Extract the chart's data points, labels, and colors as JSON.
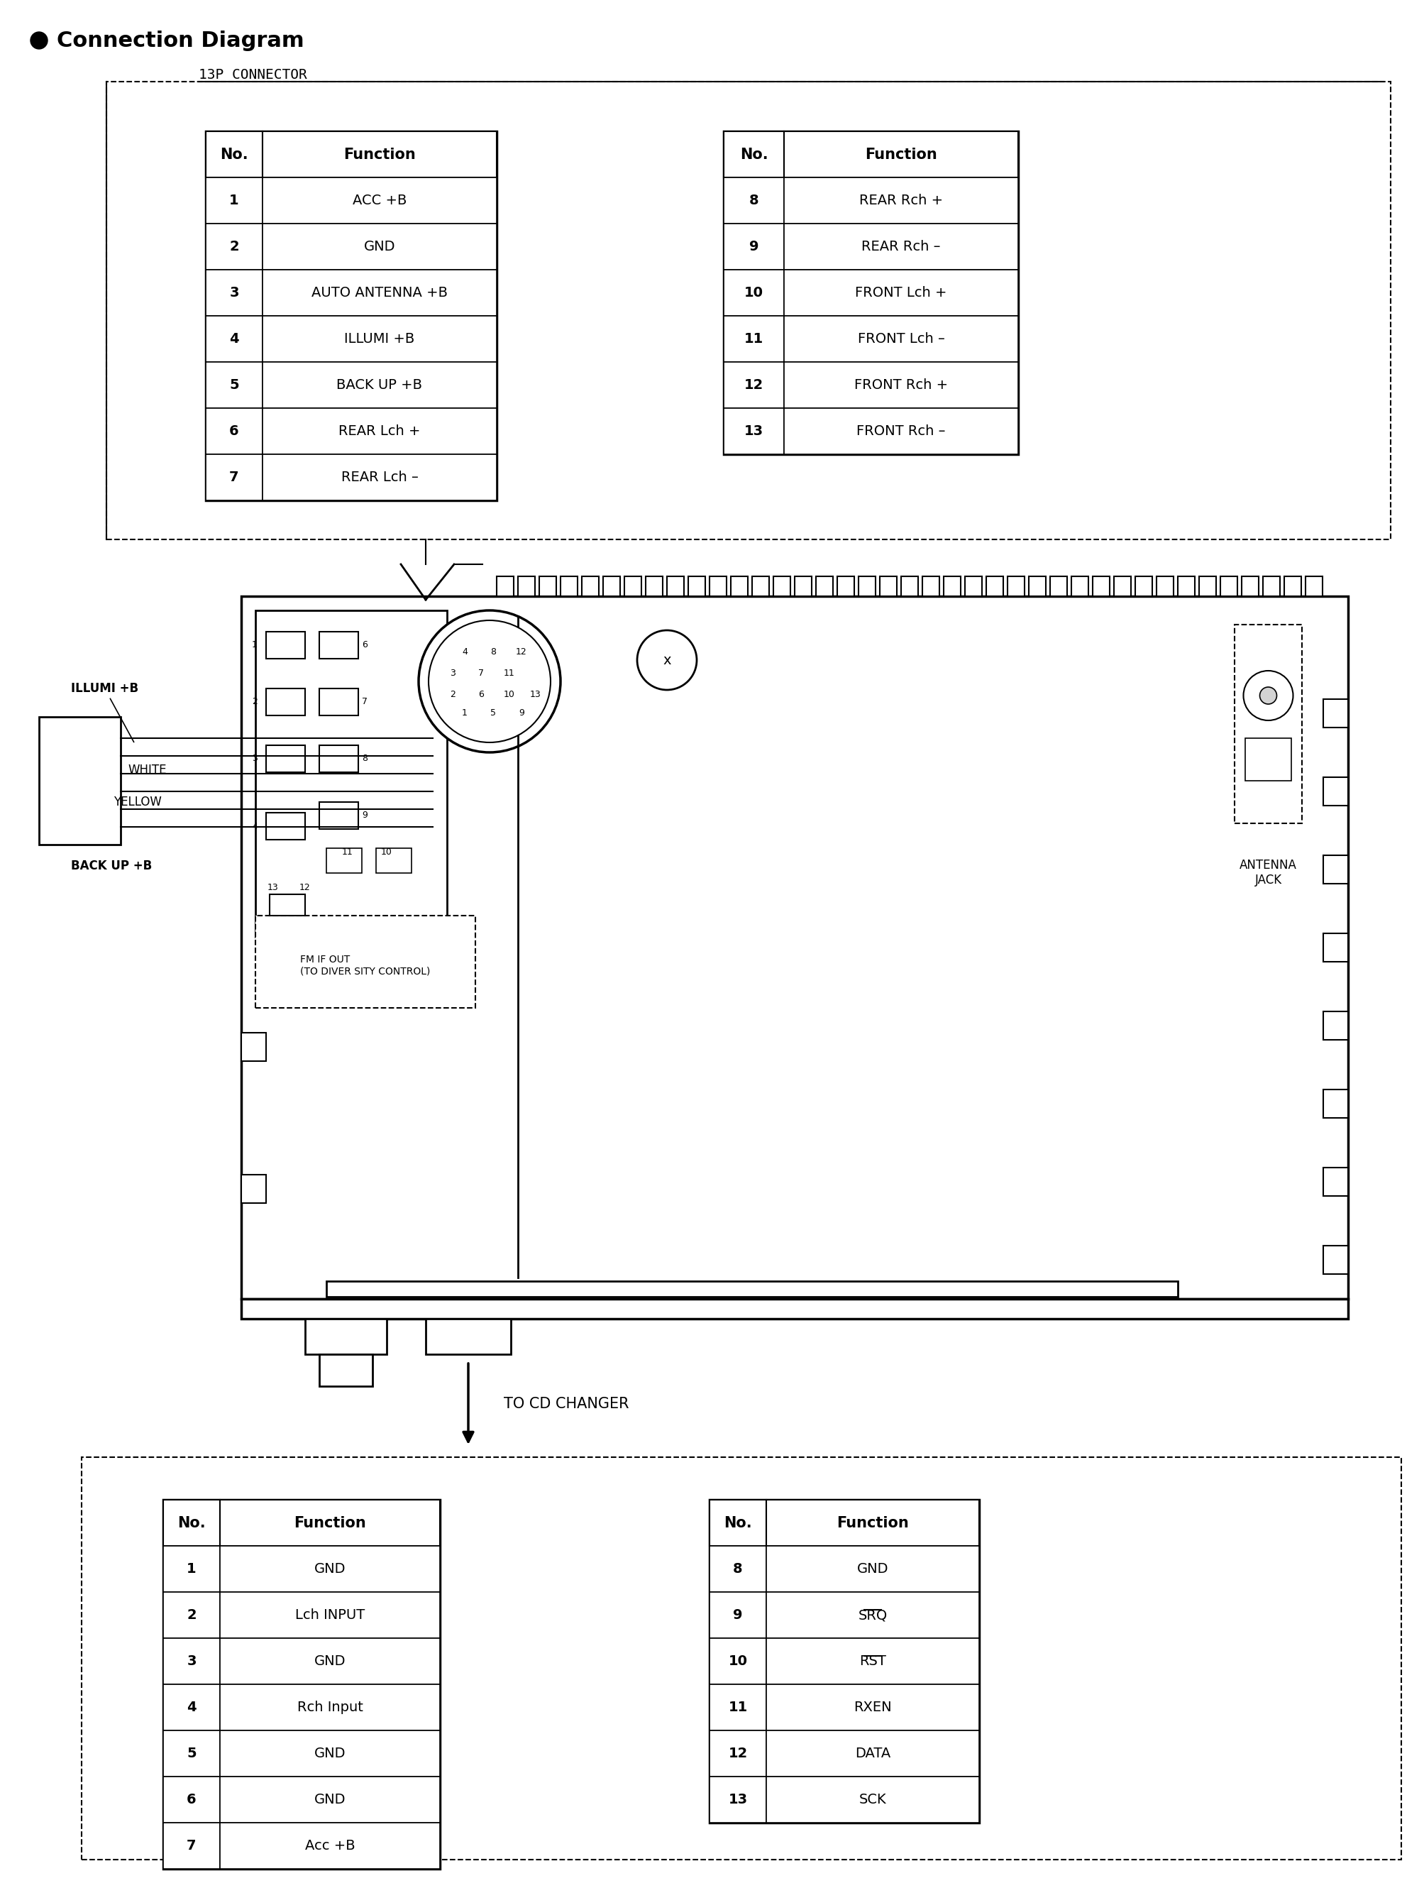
{
  "title": "Connection Diagram",
  "connector1_label": "13P CONNECTOR",
  "table1_left": {
    "headers": [
      "No.",
      "Function"
    ],
    "rows": [
      [
        "1",
        "ACC +B"
      ],
      [
        "2",
        "GND"
      ],
      [
        "3",
        "AUTO ANTENNA +B"
      ],
      [
        "4",
        "ILLUMI +B"
      ],
      [
        "5",
        "BACK UP +B"
      ],
      [
        "6",
        "REAR Lch +"
      ],
      [
        "7",
        "REAR Lch –"
      ]
    ]
  },
  "table1_right": {
    "headers": [
      "No.",
      "Function"
    ],
    "rows": [
      [
        "8",
        "REAR Rch +"
      ],
      [
        "9",
        "REAR Rch –"
      ],
      [
        "10",
        "FRONT Lch +"
      ],
      [
        "11",
        "FRONT Lch –"
      ],
      [
        "12",
        "FRONT Rch +"
      ],
      [
        "13",
        "FRONT Rch –"
      ]
    ]
  },
  "cd_changer_label": "TO CD CHANGER",
  "table2_left": {
    "headers": [
      "No.",
      "Function"
    ],
    "rows": [
      [
        "1",
        "GND"
      ],
      [
        "2",
        "Lch INPUT"
      ],
      [
        "3",
        "GND"
      ],
      [
        "4",
        "Rch Input"
      ],
      [
        "5",
        "GND"
      ],
      [
        "6",
        "GND"
      ],
      [
        "7",
        "Acc +B"
      ]
    ]
  },
  "table2_right": {
    "headers": [
      "No.",
      "Function"
    ],
    "rows": [
      [
        "8",
        "GND"
      ],
      [
        "9",
        "SRQ"
      ],
      [
        "10",
        "RST"
      ],
      [
        "11",
        "RXEN"
      ],
      [
        "12",
        "DATA"
      ],
      [
        "13",
        "SCK"
      ]
    ]
  },
  "overline_entries": [
    "SRQ",
    "RST"
  ],
  "labels_diagram": {
    "illumi": "ILLUMI +B",
    "white": "WHITE",
    "yellow": "YELLOW",
    "backup": "BACK UP +B",
    "antenna_jack": "ANTENNA\nJACK",
    "fm_if_out": "FM IF OUT\n(TO DIVER SITY CONTROL)"
  },
  "bg_color": "#ffffff",
  "text_color": "#000000",
  "line_color": "#000000"
}
